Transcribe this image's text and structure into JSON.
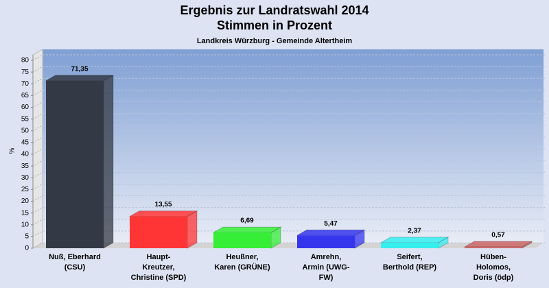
{
  "chart_data": {
    "type": "bar3d",
    "title": "Ergebnis zur Landratswahl 2014\nStimmen in Prozent",
    "subtitle": "Landkreis Würzburg - Gemeinde Altertheim",
    "y_label": "%",
    "categories": [
      "Nuß, Eberhard\n(CSU)",
      "Haupt-\nKreutzer,\nChristine (SPD)",
      "Heußner,\nKaren (GRÜNE)",
      "Amrehn,\nArmin (UWG-\nFW)",
      "Seifert,\nBerthold (REP)",
      "Hüben-\nHolomos,\nDoris (ödp)"
    ],
    "values": [
      71.35,
      13.55,
      6.69,
      5.47,
      2.37,
      0.57
    ],
    "value_labels": [
      "71,35",
      "13,55",
      "6,69",
      "5,47",
      "2,37",
      "0,57"
    ],
    "colors": [
      "#343a45",
      "#ff3535",
      "#35ee35",
      "#3535ee",
      "#35eeee",
      "#cc6666"
    ],
    "ylim": [
      0,
      80
    ],
    "yticks": [
      0,
      5,
      10,
      15,
      20,
      25,
      30,
      35,
      40,
      45,
      50,
      55,
      60,
      65,
      70,
      75,
      80
    ],
    "grid": true
  }
}
